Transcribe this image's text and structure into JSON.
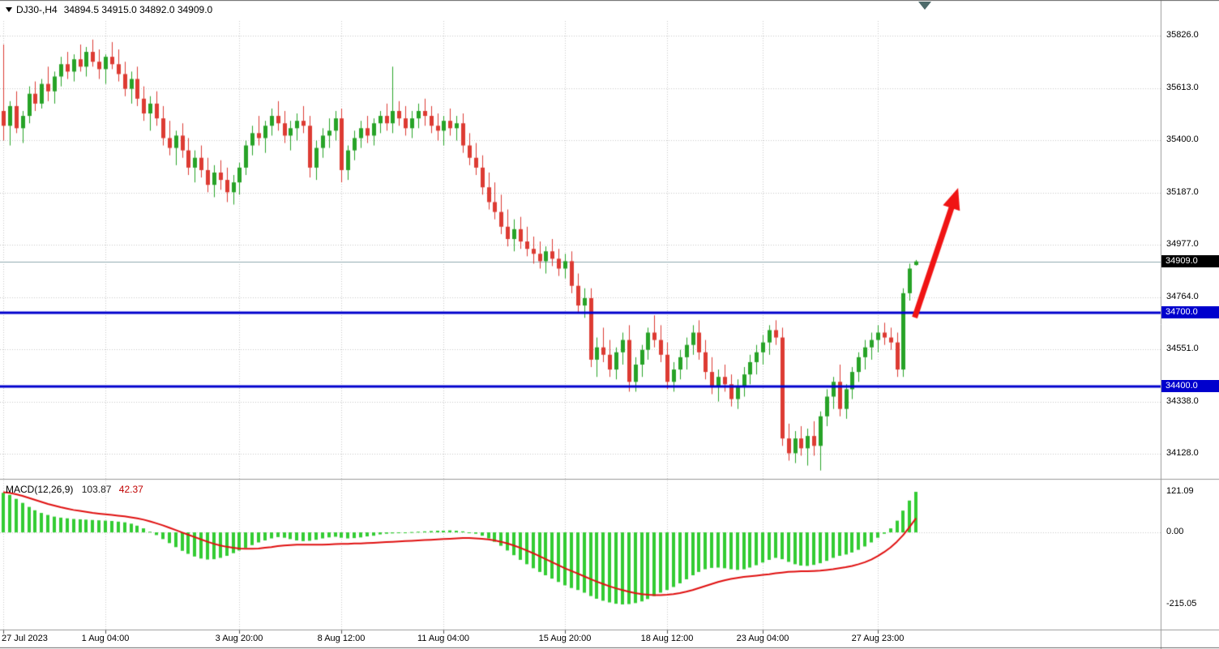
{
  "header": {
    "symbol": "DJ30-,H4",
    "ohlc": "34894.5 34915.0 34892.0 34909.0"
  },
  "macd_header": {
    "name": "MACD(12,26,9)",
    "main_value": "103.87",
    "signal_value": "42.37"
  },
  "price_axis": {
    "current": {
      "value": 34909.0,
      "label": "34909.0"
    },
    "ticks": [
      {
        "value": 35826.0,
        "label": "35826.0"
      },
      {
        "value": 35613.0,
        "label": "35613.0"
      },
      {
        "value": 35400.0,
        "label": "35400.0"
      },
      {
        "value": 35187.0,
        "label": "35187.0"
      },
      {
        "value": 34977.0,
        "label": "34977.0"
      },
      {
        "value": 34764.0,
        "label": "34764.0"
      },
      {
        "value": 34551.0,
        "label": "34551.0"
      },
      {
        "value": 34338.0,
        "label": "34338.0"
      },
      {
        "value": 34128.0,
        "label": "34128.0"
      }
    ]
  },
  "levels": [
    {
      "value": 34700.0,
      "label": "34700.0",
      "color": "#0000cd"
    },
    {
      "value": 34400.0,
      "label": "34400.0",
      "color": "#0000cd"
    }
  ],
  "time_axis": {
    "ticks": [
      {
        "bar": 0,
        "label": "27 Jul 2023",
        "align": "left"
      },
      {
        "bar": 16,
        "label": "1 Aug 04:00"
      },
      {
        "bar": 37,
        "label": "3 Aug 20:00"
      },
      {
        "bar": 53,
        "label": "8 Aug 12:00"
      },
      {
        "bar": 69,
        "label": "11 Aug 04:00"
      },
      {
        "bar": 88,
        "label": "15 Aug 20:00"
      },
      {
        "bar": 104,
        "label": "18 Aug 12:00"
      },
      {
        "bar": 119,
        "label": "23 Aug 04:00"
      },
      {
        "bar": 137,
        "label": "27 Aug 23:00"
      }
    ]
  },
  "macd_axis": {
    "ticks": [
      {
        "value": 121.09,
        "label": "121.09"
      },
      {
        "value": 0,
        "label": "0.00"
      },
      {
        "value": -215.05,
        "label": "-215.05"
      }
    ]
  },
  "colors": {
    "up": "#27a327",
    "down": "#dd3b33",
    "hist": "#33cc33",
    "signal": "#e01010",
    "level": "#0000cd",
    "grid": "#c8c8c8",
    "separator": "#9a9a9a",
    "edge": "#666666",
    "arrow": "#f01414",
    "current_line": "#8faab0"
  },
  "chart_data": {
    "type": "candlestick",
    "symbol": "DJ30-",
    "timeframe": "H4",
    "title": "DJ30-,H4",
    "ylim": [
      34060,
      35900
    ],
    "ohlc_current": {
      "open": 34894.5,
      "high": 34915.0,
      "low": 34892.0,
      "close": 34909.0
    },
    "candles": [
      [
        35520,
        35790,
        35400,
        35460
      ],
      [
        35460,
        35560,
        35380,
        35540
      ],
      [
        35540,
        35600,
        35430,
        35450
      ],
      [
        35450,
        35520,
        35390,
        35500
      ],
      [
        35500,
        35620,
        35470,
        35590
      ],
      [
        35590,
        35640,
        35520,
        35550
      ],
      [
        35550,
        35650,
        35530,
        35630
      ],
      [
        35630,
        35700,
        35560,
        35600
      ],
      [
        35600,
        35680,
        35550,
        35660
      ],
      [
        35660,
        35740,
        35620,
        35710
      ],
      [
        35710,
        35760,
        35650,
        35680
      ],
      [
        35680,
        35750,
        35640,
        35730
      ],
      [
        35730,
        35790,
        35680,
        35700
      ],
      [
        35700,
        35780,
        35660,
        35760
      ],
      [
        35760,
        35810,
        35700,
        35720
      ],
      [
        35720,
        35770,
        35650,
        35690
      ],
      [
        35690,
        35750,
        35630,
        35740
      ],
      [
        35740,
        35800,
        35690,
        35710
      ],
      [
        35710,
        35770,
        35640,
        35670
      ],
      [
        35670,
        35720,
        35580,
        35610
      ],
      [
        35610,
        35680,
        35550,
        35650
      ],
      [
        35650,
        35700,
        35540,
        35570
      ],
      [
        35570,
        35620,
        35480,
        35510
      ],
      [
        35510,
        35580,
        35440,
        35550
      ],
      [
        35550,
        35600,
        35460,
        35490
      ],
      [
        35490,
        35540,
        35380,
        35410
      ],
      [
        35410,
        35480,
        35340,
        35370
      ],
      [
        35370,
        35440,
        35300,
        35420
      ],
      [
        35420,
        35470,
        35330,
        35360
      ],
      [
        35360,
        35410,
        35260,
        35290
      ],
      [
        35290,
        35360,
        35230,
        35330
      ],
      [
        35330,
        35380,
        35250,
        35280
      ],
      [
        35280,
        35330,
        35190,
        35220
      ],
      [
        35220,
        35300,
        35170,
        35270
      ],
      [
        35270,
        35320,
        35200,
        35240
      ],
      [
        35240,
        35290,
        35150,
        35190
      ],
      [
        35190,
        35260,
        35140,
        35230
      ],
      [
        35230,
        35310,
        35180,
        35290
      ],
      [
        35290,
        35400,
        35260,
        35380
      ],
      [
        35380,
        35460,
        35340,
        35430
      ],
      [
        35430,
        35500,
        35380,
        35410
      ],
      [
        35410,
        35480,
        35350,
        35460
      ],
      [
        35460,
        35530,
        35420,
        35500
      ],
      [
        35500,
        35560,
        35440,
        35470
      ],
      [
        35470,
        35520,
        35390,
        35420
      ],
      [
        35420,
        35480,
        35360,
        35450
      ],
      [
        35450,
        35510,
        35400,
        35480
      ],
      [
        35480,
        35540,
        35430,
        35460
      ],
      [
        35460,
        35500,
        35250,
        35290
      ],
      [
        35290,
        35400,
        35240,
        35370
      ],
      [
        35370,
        35450,
        35330,
        35420
      ],
      [
        35420,
        35490,
        35370,
        35440
      ],
      [
        35440,
        35520,
        35400,
        35490
      ],
      [
        35490,
        35530,
        35230,
        35280
      ],
      [
        35280,
        35380,
        35240,
        35360
      ],
      [
        35360,
        35440,
        35320,
        35410
      ],
      [
        35410,
        35480,
        35370,
        35450
      ],
      [
        35450,
        35500,
        35390,
        35420
      ],
      [
        35420,
        35490,
        35380,
        35470
      ],
      [
        35470,
        35520,
        35430,
        35500
      ],
      [
        35500,
        35550,
        35440,
        35470
      ],
      [
        35470,
        35700,
        35430,
        35520
      ],
      [
        35520,
        35560,
        35460,
        35490
      ],
      [
        35490,
        35540,
        35420,
        35450
      ],
      [
        35450,
        35520,
        35410,
        35490
      ],
      [
        35490,
        35550,
        35450,
        35520
      ],
      [
        35520,
        35570,
        35460,
        35500
      ],
      [
        35500,
        35540,
        35430,
        35460
      ],
      [
        35460,
        35510,
        35400,
        35440
      ],
      [
        35440,
        35500,
        35380,
        35480
      ],
      [
        35480,
        35530,
        35420,
        35450
      ],
      [
        35450,
        35500,
        35400,
        35470
      ],
      [
        35470,
        35510,
        35350,
        35380
      ],
      [
        35380,
        35430,
        35300,
        35330
      ],
      [
        35330,
        35390,
        35260,
        35290
      ],
      [
        35290,
        35340,
        35180,
        35210
      ],
      [
        35210,
        35270,
        35120,
        35150
      ],
      [
        35150,
        35230,
        35080,
        35110
      ],
      [
        35110,
        35180,
        35020,
        35050
      ],
      [
        35050,
        35120,
        34970,
        35000
      ],
      [
        35000,
        35080,
        34950,
        35040
      ],
      [
        35040,
        35090,
        34960,
        34990
      ],
      [
        34990,
        35050,
        34930,
        34960
      ],
      [
        34960,
        35010,
        34900,
        34940
      ],
      [
        34940,
        34990,
        34880,
        34910
      ],
      [
        34910,
        34970,
        34860,
        34950
      ],
      [
        34950,
        35000,
        34890,
        34920
      ],
      [
        34920,
        34960,
        34850,
        34880
      ],
      [
        34880,
        34940,
        34840,
        34910
      ],
      [
        34910,
        34950,
        34780,
        34810
      ],
      [
        34810,
        34860,
        34700,
        34730
      ],
      [
        34730,
        34800,
        34680,
        34760
      ],
      [
        34760,
        34800,
        34480,
        34510
      ],
      [
        34510,
        34600,
        34440,
        34560
      ],
      [
        34560,
        34640,
        34500,
        34530
      ],
      [
        34530,
        34590,
        34440,
        34470
      ],
      [
        34470,
        34560,
        34430,
        34540
      ],
      [
        34540,
        34620,
        34490,
        34590
      ],
      [
        34590,
        34650,
        34380,
        34420
      ],
      [
        34420,
        34520,
        34380,
        34490
      ],
      [
        34490,
        34570,
        34440,
        34550
      ],
      [
        34550,
        34640,
        34510,
        34620
      ],
      [
        34620,
        34690,
        34560,
        34590
      ],
      [
        34590,
        34650,
        34500,
        34530
      ],
      [
        34530,
        34580,
        34390,
        34420
      ],
      [
        34420,
        34500,
        34380,
        34470
      ],
      [
        34470,
        34550,
        34430,
        34520
      ],
      [
        34520,
        34600,
        34470,
        34570
      ],
      [
        34570,
        34650,
        34530,
        34620
      ],
      [
        34620,
        34670,
        34510,
        34540
      ],
      [
        34540,
        34590,
        34430,
        34460
      ],
      [
        34460,
        34520,
        34370,
        34400
      ],
      [
        34400,
        34470,
        34340,
        34440
      ],
      [
        34440,
        34490,
        34380,
        34410
      ],
      [
        34410,
        34450,
        34320,
        34350
      ],
      [
        34350,
        34430,
        34310,
        34400
      ],
      [
        34400,
        34480,
        34360,
        34450
      ],
      [
        34450,
        34530,
        34410,
        34500
      ],
      [
        34500,
        34570,
        34450,
        34540
      ],
      [
        34540,
        34610,
        34490,
        34580
      ],
      [
        34580,
        34650,
        34530,
        34630
      ],
      [
        34630,
        34670,
        34570,
        34600
      ],
      [
        34600,
        34640,
        34160,
        34190
      ],
      [
        34190,
        34250,
        34100,
        34130
      ],
      [
        34130,
        34220,
        34090,
        34190
      ],
      [
        34190,
        34240,
        34120,
        34150
      ],
      [
        34150,
        34230,
        34080,
        34200
      ],
      [
        34200,
        34260,
        34120,
        34160
      ],
      [
        34160,
        34300,
        34060,
        34280
      ],
      [
        34280,
        34390,
        34240,
        34360
      ],
      [
        34360,
        34440,
        34310,
        34420
      ],
      [
        34420,
        34490,
        34280,
        34310
      ],
      [
        34310,
        34410,
        34270,
        34390
      ],
      [
        34390,
        34480,
        34350,
        34460
      ],
      [
        34460,
        34540,
        34420,
        34520
      ],
      [
        34520,
        34590,
        34470,
        34560
      ],
      [
        34560,
        34620,
        34510,
        34590
      ],
      [
        34590,
        34650,
        34540,
        34620
      ],
      [
        34620,
        34660,
        34570,
        34600
      ],
      [
        34600,
        34640,
        34550,
        34580
      ],
      [
        34580,
        34620,
        34440,
        34470
      ],
      [
        34470,
        34800,
        34440,
        34780
      ],
      [
        34780,
        34900,
        34750,
        34880
      ],
      [
        34894.5,
        34915,
        34892,
        34909
      ]
    ],
    "indicator": {
      "name": "MACD",
      "params": [
        12,
        26,
        9
      ],
      "main_last": 103.87,
      "signal_last": 42.37,
      "scale": {
        "max": 121.09,
        "min": -215.05
      },
      "histogram": [
        118,
        112,
        100,
        88,
        76,
        66,
        58,
        52,
        47,
        44,
        42,
        40,
        39,
        38,
        37,
        36,
        35,
        34,
        32,
        30,
        26,
        20,
        12,
        2,
        -8,
        -20,
        -32,
        -44,
        -55,
        -64,
        -72,
        -78,
        -81,
        -80,
        -76,
        -70,
        -62,
        -54,
        -46,
        -38,
        -30,
        -24,
        -18,
        -14,
        -16,
        -20,
        -24,
        -26,
        -25,
        -22,
        -18,
        -15,
        -13,
        -16,
        -18,
        -17,
        -15,
        -12,
        -10,
        -6,
        -4,
        -3,
        -2,
        -1,
        1,
        2,
        3,
        4,
        5,
        5,
        6,
        5,
        3,
        0,
        -4,
        -10,
        -18,
        -28,
        -40,
        -54,
        -68,
        -82,
        -95,
        -107,
        -118,
        -128,
        -138,
        -148,
        -158,
        -166,
        -172,
        -180,
        -190,
        -198,
        -204,
        -209,
        -213,
        -215,
        -214,
        -211,
        -206,
        -199,
        -190,
        -180,
        -172,
        -163,
        -152,
        -140,
        -128,
        -118,
        -110,
        -106,
        -105,
        -107,
        -110,
        -112,
        -110,
        -105,
        -98,
        -90,
        -82,
        -76,
        -80,
        -88,
        -95,
        -99,
        -100,
        -97,
        -92,
        -85,
        -76,
        -70,
        -66,
        -60,
        -52,
        -42,
        -30,
        -16,
        -4,
        12,
        35,
        65,
        95,
        121
      ],
      "signal": [
        120,
        118,
        114,
        109,
        103,
        97,
        91,
        85,
        80,
        75,
        71,
        67,
        64,
        61,
        58,
        56,
        54,
        52,
        50,
        48,
        45,
        42,
        38,
        33,
        27,
        21,
        14,
        7,
        0,
        -7,
        -14,
        -21,
        -28,
        -34,
        -39,
        -43,
        -46,
        -48,
        -49,
        -49,
        -48,
        -46,
        -44,
        -41,
        -39,
        -38,
        -37,
        -37,
        -37,
        -37,
        -37,
        -36,
        -35,
        -34,
        -34,
        -33,
        -33,
        -32,
        -31,
        -30,
        -29,
        -28,
        -27,
        -26,
        -25,
        -24,
        -23,
        -22,
        -21,
        -20,
        -19,
        -18,
        -17,
        -17,
        -18,
        -19,
        -21,
        -24,
        -28,
        -33,
        -39,
        -46,
        -54,
        -62,
        -71,
        -80,
        -89,
        -98,
        -107,
        -115,
        -123,
        -131,
        -139,
        -147,
        -154,
        -161,
        -167,
        -172,
        -177,
        -181,
        -184,
        -186,
        -187,
        -187,
        -186,
        -184,
        -181,
        -177,
        -172,
        -166,
        -160,
        -154,
        -148,
        -143,
        -139,
        -136,
        -133,
        -131,
        -129,
        -127,
        -125,
        -122,
        -120,
        -118,
        -117,
        -116,
        -116,
        -115,
        -114,
        -112,
        -110,
        -107,
        -104,
        -100,
        -95,
        -89,
        -81,
        -71,
        -59,
        -45,
        -28,
        -8,
        16,
        42
      ]
    },
    "annotations": {
      "hlines": [
        34700.0,
        34400.0
      ],
      "arrow": {
        "from_bar": 142.8,
        "from_price": 34681,
        "to_bar": 149.6,
        "to_price": 35207,
        "width": 7
      }
    }
  }
}
